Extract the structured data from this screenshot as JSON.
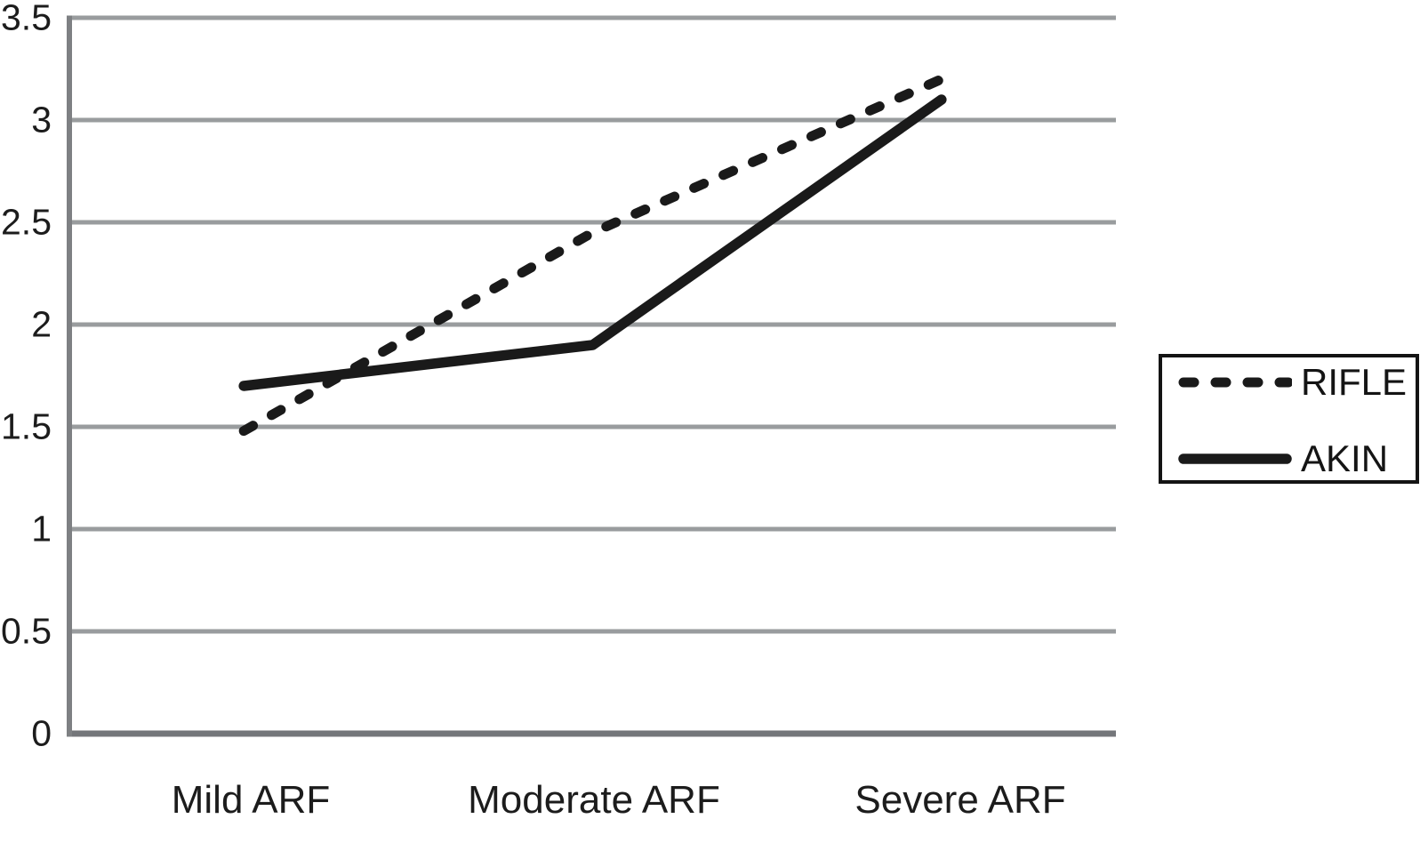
{
  "chart_data": {
    "type": "line",
    "title": "",
    "xlabel": "",
    "ylabel": "",
    "categories": [
      "Mild ARF",
      "Moderate ARF",
      "Severe ARF"
    ],
    "series": [
      {
        "name": "RIFLE",
        "line_style": "dashed",
        "values": [
          1.48,
          2.45,
          3.2
        ]
      },
      {
        "name": "AKIN",
        "line_style": "solid",
        "values": [
          1.7,
          1.9,
          3.1
        ]
      }
    ],
    "ylim": [
      0,
      3.5
    ],
    "yticks": [
      0,
      0.5,
      1,
      1.5,
      2,
      2.5,
      3,
      3.5
    ],
    "ytick_labels": [
      "0",
      "0.5",
      "1",
      "1.5",
      "2",
      "2.5",
      "3",
      "3.5"
    ],
    "grid": "horizontal",
    "legend_position": "right",
    "colors": {
      "series_line": "#1a1a1a",
      "gridline": "#999c9e",
      "axis_left": "#7e8083",
      "axis_bottom": "#74767a",
      "text": "#1c1c1c",
      "legend_border": "#141414",
      "background": "#ffffff"
    }
  },
  "legend": {
    "items": [
      {
        "label": "RIFLE",
        "sample": "dashed-line"
      },
      {
        "label": "AKIN",
        "sample": "solid-line"
      }
    ]
  }
}
